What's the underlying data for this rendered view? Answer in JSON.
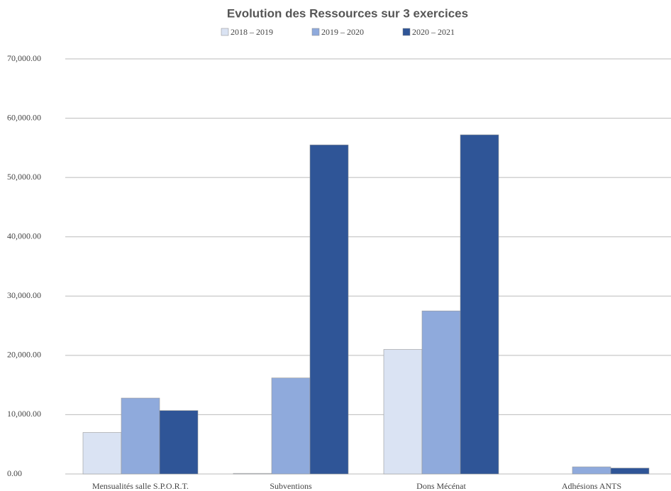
{
  "chart_data": {
    "type": "bar",
    "title": "Evolution des Ressources sur 3  exercices",
    "categories": [
      "Mensualités salle S.P.O.R.T.",
      "Subventions",
      "Dons Mécénat",
      "Adhésions ANTS"
    ],
    "series": [
      {
        "name": "2018 – 2019",
        "color": "#dae3f3",
        "values": [
          7000,
          100,
          21000,
          0
        ]
      },
      {
        "name": "2019 – 2020",
        "color": "#8faadc",
        "values": [
          12800,
          16200,
          27500,
          1200
        ]
      },
      {
        "name": "2020 – 2021",
        "color": "#2f5597",
        "values": [
          10700,
          55500,
          57200,
          1000
        ]
      }
    ],
    "ylim": [
      0,
      70000
    ],
    "yticks": [
      {
        "value": 0,
        "label": "0.00"
      },
      {
        "value": 10000,
        "label": "10,000.00"
      },
      {
        "value": 20000,
        "label": "20,000.00"
      },
      {
        "value": 30000,
        "label": "30,000.00"
      },
      {
        "value": 40000,
        "label": "40,000.00"
      },
      {
        "value": 50000,
        "label": "50,000.00"
      },
      {
        "value": 60000,
        "label": "60,000.00"
      },
      {
        "value": 70000,
        "label": "70,000.00"
      }
    ],
    "grid": true
  }
}
